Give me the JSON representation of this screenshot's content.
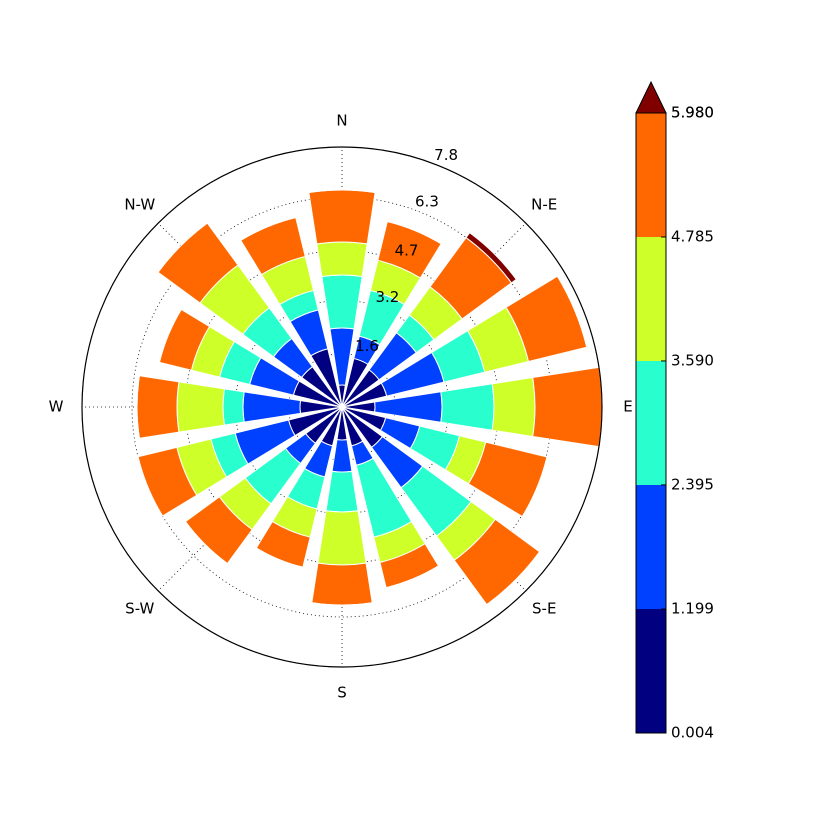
{
  "chart_data": {
    "type": "windrose",
    "direction_labels": [
      "N",
      "N-E",
      "E",
      "S-E",
      "S",
      "S-W",
      "W",
      "N-W"
    ],
    "ylim": [
      0,
      7.8
    ],
    "yticks": [
      1.6,
      3.2,
      4.7,
      6.3,
      7.8
    ],
    "grid": true,
    "series": [
      {
        "color": "#000080",
        "values": [
          0.66,
          1.5,
          1.38,
          1.38,
          0.99,
          1.35,
          1.5,
          1.2,
          0.99,
          1.2,
          1.35,
          1.65,
          1.26,
          1.5,
          1.5,
          1.8
        ]
      },
      {
        "color": "#0040ff",
        "values": [
          1.71,
          0.69,
          1.38,
          1.77,
          2.01,
          1.05,
          1.5,
          0.6,
          0.96,
          0.96,
          0.75,
          1.65,
          1.71,
          1.35,
          1.05,
          1.2
        ]
      },
      {
        "color": "#29ffce",
        "values": [
          1.59,
          1.41,
          0.66,
          1.26,
          1.56,
          1.23,
          1.8,
          2.22,
          1.2,
          0.99,
          1.5,
          0.75,
          0.6,
          0.93,
          1.14,
          0.6
        ]
      },
      {
        "color": "#ceff29",
        "values": [
          0.99,
          0.93,
          1.05,
          1.35,
          1.23,
          0.81,
          0.9,
          0.78,
          1.59,
          0.87,
          0.96,
          1.05,
          1.38,
          0.87,
          1.59,
          1.05
        ]
      },
      {
        "color": "#ff6800",
        "values": [
          1.56,
          1.2,
          1.83,
          1.8,
          2.01,
          1.89,
          1.65,
          0.78,
          1.2,
          0.93,
          1.26,
          1.2,
          1.2,
          0.99,
          1.56,
          1.2
        ]
      },
      {
        "color": "#800000",
        "values": [
          0,
          0,
          0.18,
          0,
          0,
          0,
          0,
          0,
          0,
          0,
          0,
          0,
          0,
          0,
          0,
          0
        ]
      }
    ],
    "colorbar": {
      "range": [
        0.004,
        5.98
      ],
      "ticks": [
        0.004,
        {
          "value": 1.199,
          "label": "1.199"
        },
        {
          "value": 2.395,
          "label": "2.395"
        },
        {
          "value": 3.59,
          "label": "3.590"
        },
        {
          "value": 4.785,
          "label": "4.785"
        },
        {
          "value": 5.98,
          "label": "5.980"
        },
        {
          "value": 5.98,
          "label": "5.980"
        }
      ]
    }
  }
}
